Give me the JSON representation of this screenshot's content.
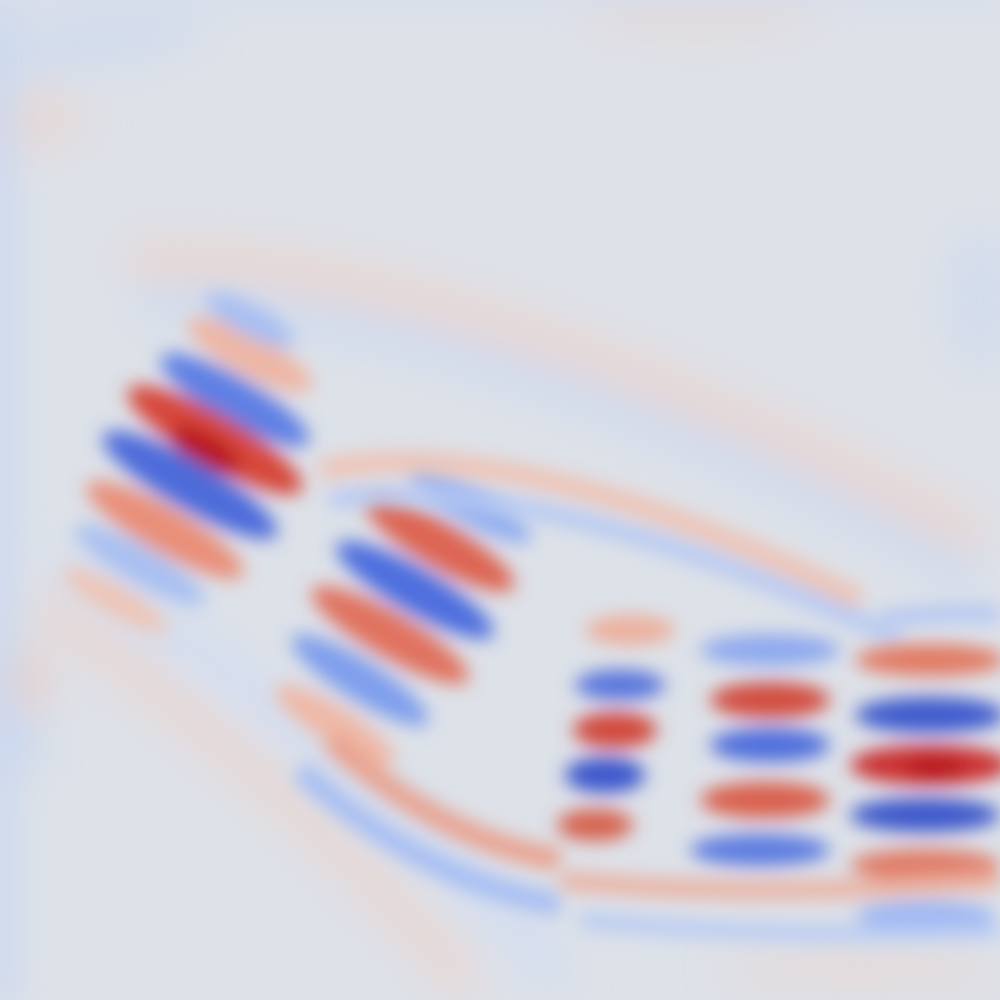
{
  "field_view": {
    "colormap": "coolwarm",
    "colors": {
      "neutral": "#dde1e8",
      "positive_light": "#efc4b2",
      "positive_mid": "#e6826b",
      "positive_strong": "#c8272c",
      "negative_light": "#c2d4f4",
      "negative_mid": "#7d9df0",
      "negative_strong": "#3b56c8"
    }
  }
}
